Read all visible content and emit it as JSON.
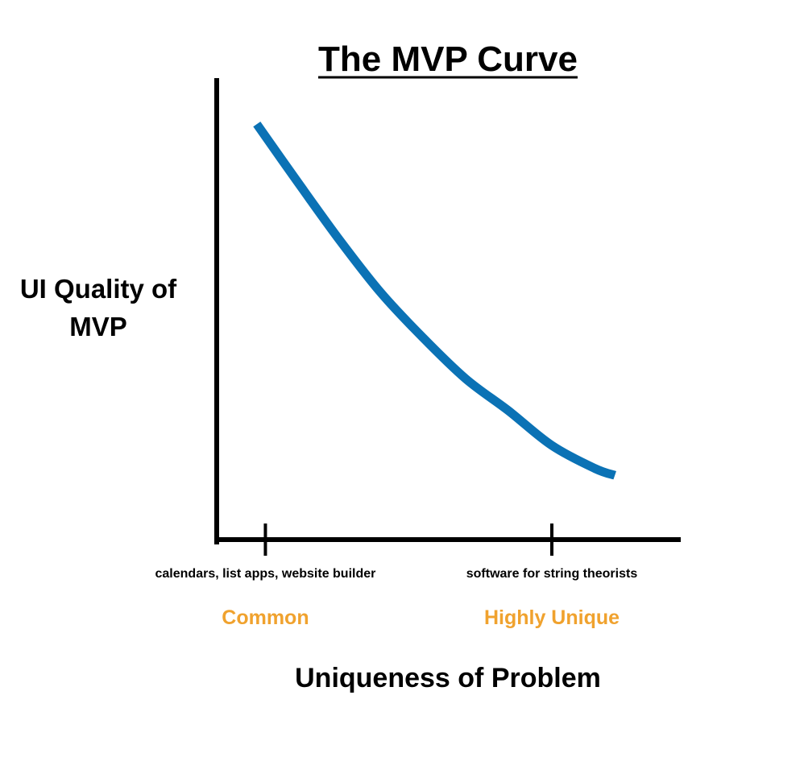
{
  "colors": {
    "curve": "#0b72b5",
    "axis": "#000000",
    "category": "#f0a22e",
    "text": "#000000"
  },
  "chart_data": {
    "type": "line",
    "title": "The MVP Curve",
    "xlabel": "Uniqueness of Problem",
    "ylabel_lines": [
      "UI Quality of",
      "MVP"
    ],
    "ticks": [
      {
        "x": 0,
        "category": "Common",
        "description": "calendars, list apps, website builder"
      },
      {
        "x": 1,
        "category": "Highly Unique",
        "description": "software for string theorists"
      }
    ],
    "xlim": [
      -0.17,
      1.45
    ],
    "ylim": [
      0,
      1
    ],
    "series": [
      {
        "x": [
          -0.03,
          0.1,
          0.25,
          0.4,
          0.55,
          0.7,
          0.85,
          1.0,
          1.15,
          1.22
        ],
        "y": [
          0.905,
          0.79,
          0.66,
          0.54,
          0.44,
          0.35,
          0.28,
          0.205,
          0.155,
          0.14
        ]
      }
    ],
    "grid": false,
    "legend": "none"
  }
}
